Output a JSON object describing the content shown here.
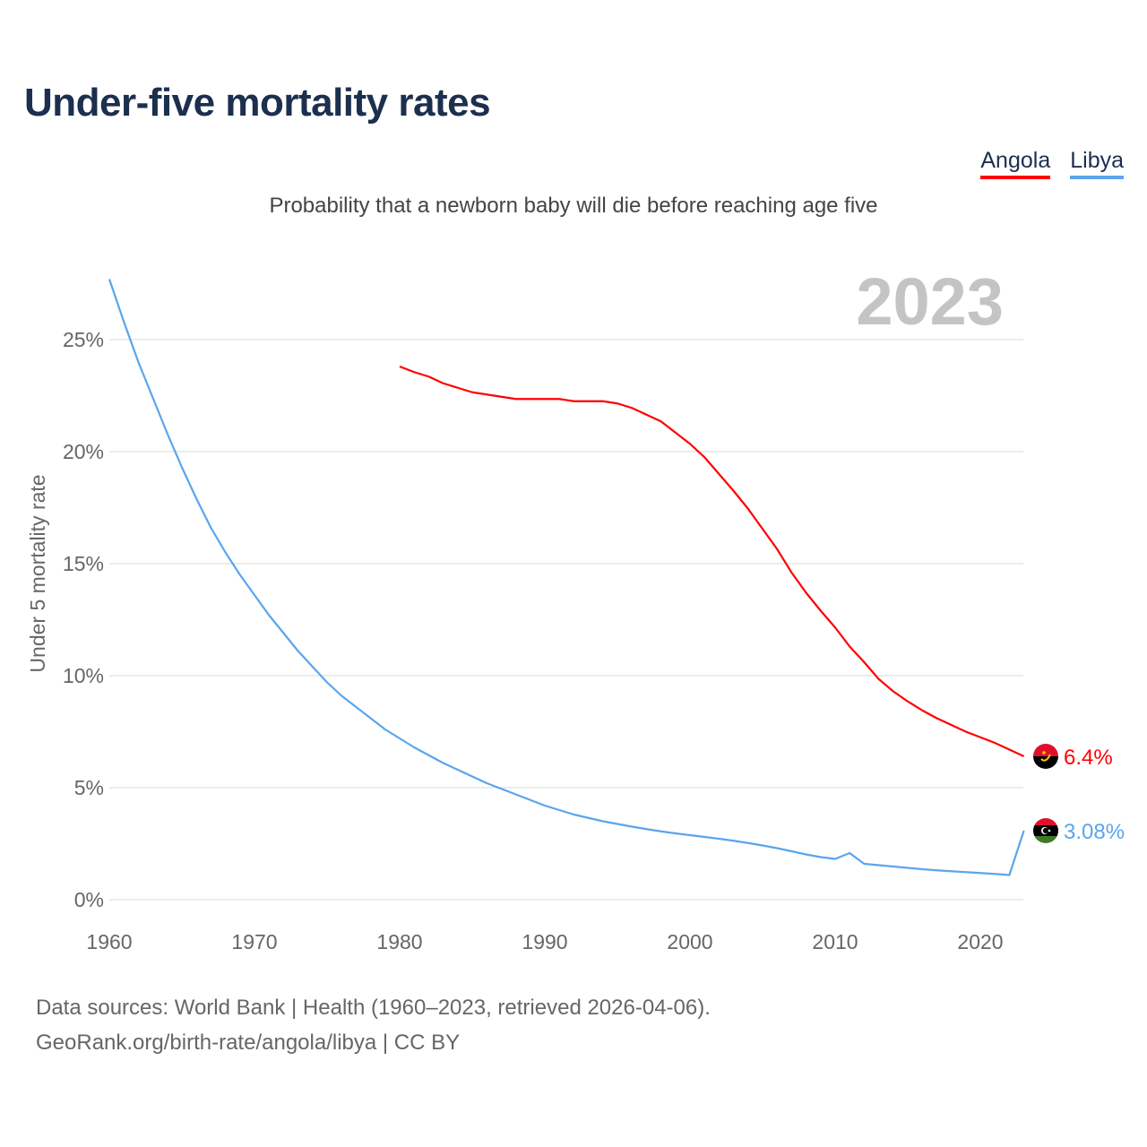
{
  "header": {
    "title": "Under-five mortality rates",
    "subtitle": "Probability that a newborn baby will die before reaching age five"
  },
  "legend": [
    {
      "label": "Angola",
      "color": "#ff0000"
    },
    {
      "label": "Libya",
      "color": "#5aa5ec"
    }
  ],
  "footer": {
    "line1": "Data sources: World Bank | Health (1960–2023, retrieved 2026-04-06).",
    "line2": "GeoRank.org/birth-rate/angola/libya | CC BY"
  },
  "chart_data": {
    "type": "line",
    "title": "Under-five mortality rates",
    "ylabel": "Under 5 mortality rate",
    "xlabel": "",
    "year_label": "2023",
    "xlim": [
      1960,
      2023
    ],
    "ylim": [
      0,
      25
    ],
    "yticks": [
      0,
      5,
      10,
      15,
      20,
      25
    ],
    "ytick_labels": [
      "0%",
      "5%",
      "10%",
      "15%",
      "20%",
      "25%"
    ],
    "xticks": [
      1960,
      1970,
      1980,
      1990,
      2000,
      2010,
      2020
    ],
    "xtick_labels": [
      "1960",
      "1970",
      "1980",
      "1990",
      "2000",
      "2010",
      "2020"
    ],
    "grid": true,
    "series": [
      {
        "name": "Angola",
        "color": "#ff0000",
        "end_label": "6.4%",
        "flag": "angola-flag",
        "x": [
          1980,
          1981,
          1982,
          1983,
          1984,
          1985,
          1986,
          1987,
          1988,
          1989,
          1990,
          1991,
          1992,
          1993,
          1994,
          1995,
          1996,
          1997,
          1998,
          1999,
          2000,
          2001,
          2002,
          2003,
          2004,
          2005,
          2006,
          2007,
          2008,
          2009,
          2010,
          2011,
          2012,
          2013,
          2014,
          2015,
          2016,
          2017,
          2018,
          2019,
          2020,
          2021,
          2022,
          2023
        ],
        "y": [
          23.8,
          23.55,
          23.35,
          23.05,
          22.85,
          22.65,
          22.55,
          22.45,
          22.35,
          22.35,
          22.35,
          22.35,
          22.25,
          22.25,
          22.25,
          22.15,
          21.95,
          21.65,
          21.35,
          20.85,
          20.35,
          19.75,
          19.0,
          18.25,
          17.45,
          16.55,
          15.65,
          14.6,
          13.7,
          12.9,
          12.15,
          11.3,
          10.6,
          9.85,
          9.3,
          8.85,
          8.45,
          8.1,
          7.8,
          7.5,
          7.25,
          7.0,
          6.7,
          6.4
        ]
      },
      {
        "name": "Libya",
        "color": "#5aa5ec",
        "end_label": "3.08%",
        "flag": "libya-flag",
        "x": [
          1960,
          1961,
          1962,
          1963,
          1964,
          1965,
          1966,
          1967,
          1968,
          1969,
          1970,
          1971,
          1972,
          1973,
          1974,
          1975,
          1976,
          1977,
          1978,
          1979,
          1980,
          1981,
          1982,
          1983,
          1984,
          1985,
          1986,
          1987,
          1988,
          1989,
          1990,
          1991,
          1992,
          1993,
          1994,
          1995,
          1996,
          1997,
          1998,
          1999,
          2000,
          2001,
          2002,
          2003,
          2004,
          2005,
          2006,
          2007,
          2008,
          2009,
          2010,
          2011,
          2012,
          2013,
          2014,
          2015,
          2016,
          2017,
          2018,
          2019,
          2020,
          2021,
          2022,
          2023
        ],
        "y": [
          27.7,
          25.8,
          24.0,
          22.4,
          20.8,
          19.3,
          17.9,
          16.6,
          15.5,
          14.5,
          13.6,
          12.7,
          11.9,
          11.1,
          10.4,
          9.7,
          9.1,
          8.6,
          8.1,
          7.6,
          7.2,
          6.8,
          6.45,
          6.1,
          5.8,
          5.5,
          5.2,
          4.95,
          4.7,
          4.45,
          4.2,
          4.0,
          3.8,
          3.65,
          3.5,
          3.38,
          3.26,
          3.15,
          3.05,
          2.96,
          2.88,
          2.8,
          2.72,
          2.63,
          2.53,
          2.42,
          2.3,
          2.16,
          2.02,
          1.9,
          1.82,
          2.08,
          1.6,
          1.54,
          1.48,
          1.42,
          1.36,
          1.31,
          1.27,
          1.23,
          1.19,
          1.15,
          1.1,
          3.08
        ]
      }
    ]
  }
}
